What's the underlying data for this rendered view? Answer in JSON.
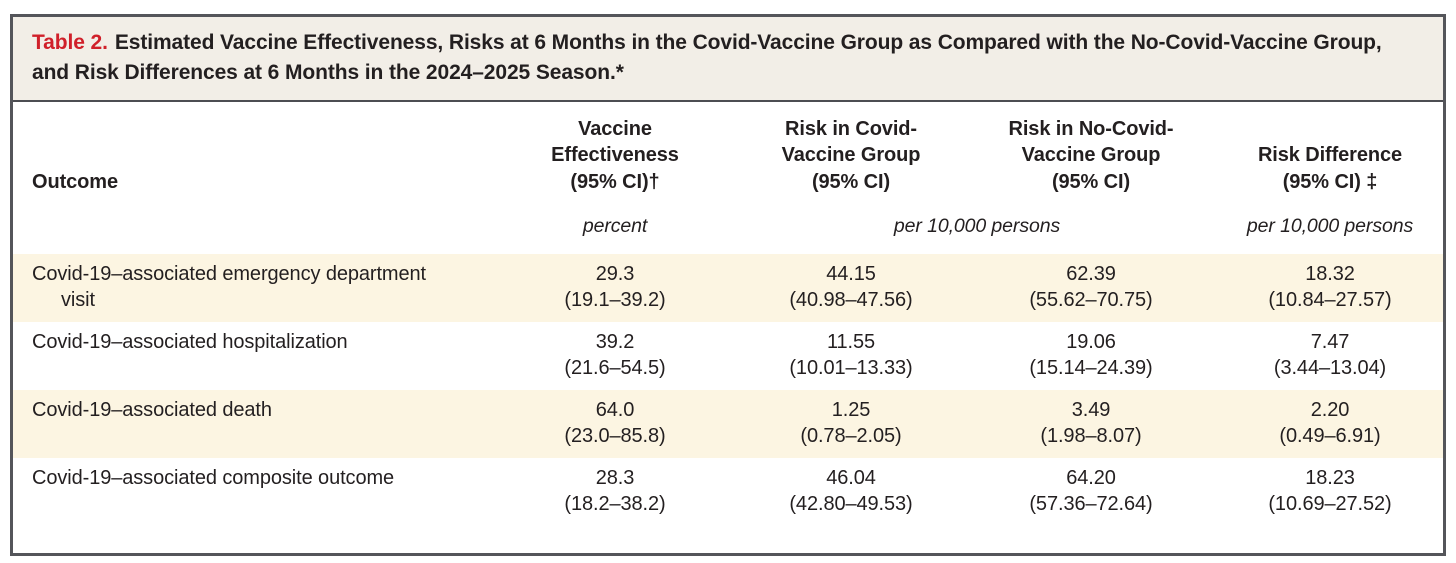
{
  "table": {
    "title": {
      "label": "Table 2.",
      "text": "Estimated Vaccine Effectiveness, Risks at 6 Months in the Covid-Vaccine Group as Compared with the No-Covid-Vaccine Group, and Risk Differences at 6 Months in the 2024–2025 Season.*"
    },
    "columns": {
      "outcome": "Outcome",
      "vaccine_effectiveness": "Vaccine\nEffectiveness\n(95% CI)†",
      "risk_covid": "Risk in Covid-\nVaccine Group\n(95% CI)",
      "risk_no_covid": "Risk in No-Covid-\nVaccine Group\n(95% CI)",
      "risk_difference": "Risk Difference\n(95% CI) ‡"
    },
    "units": {
      "vaccine_effectiveness": "percent",
      "risk_columns": "per 10,000 persons",
      "risk_difference": "per 10,000 persons"
    },
    "rows": [
      {
        "outcome": "Covid-19–associated emergency department",
        "outcome2": "visit",
        "ve": "29.3\n(19.1–39.2)",
        "risk_covid": "44.15\n(40.98–47.56)",
        "risk_no_covid": "62.39\n(55.62–70.75)",
        "risk_diff": "18.32\n(10.84–27.57)"
      },
      {
        "outcome": "Covid-19–associated hospitalization",
        "outcome2": "",
        "ve": "39.2\n(21.6–54.5)",
        "risk_covid": "11.55\n(10.01–13.33)",
        "risk_no_covid": "19.06\n(15.14–24.39)",
        "risk_diff": "7.47\n(3.44–13.04)"
      },
      {
        "outcome": "Covid-19–associated death",
        "outcome2": "",
        "ve": "64.0\n(23.0–85.8)",
        "risk_covid": "1.25\n(0.78–2.05)",
        "risk_no_covid": "3.49\n(1.98–8.07)",
        "risk_diff": "2.20\n(0.49–6.91)"
      },
      {
        "outcome": "Covid-19–associated composite outcome",
        "outcome2": "",
        "ve": "28.3\n(18.2–38.2)",
        "risk_covid": "46.04\n(42.80–49.53)",
        "risk_no_covid": "64.20\n(57.36–72.64)",
        "risk_diff": "18.23\n(10.69–27.52)"
      }
    ]
  },
  "colors": {
    "accent_red": "#d0202a",
    "title_background": "#f2eee7",
    "stripe_background": "#fcf5e2",
    "border": "#54555a",
    "text": "#231f20"
  }
}
